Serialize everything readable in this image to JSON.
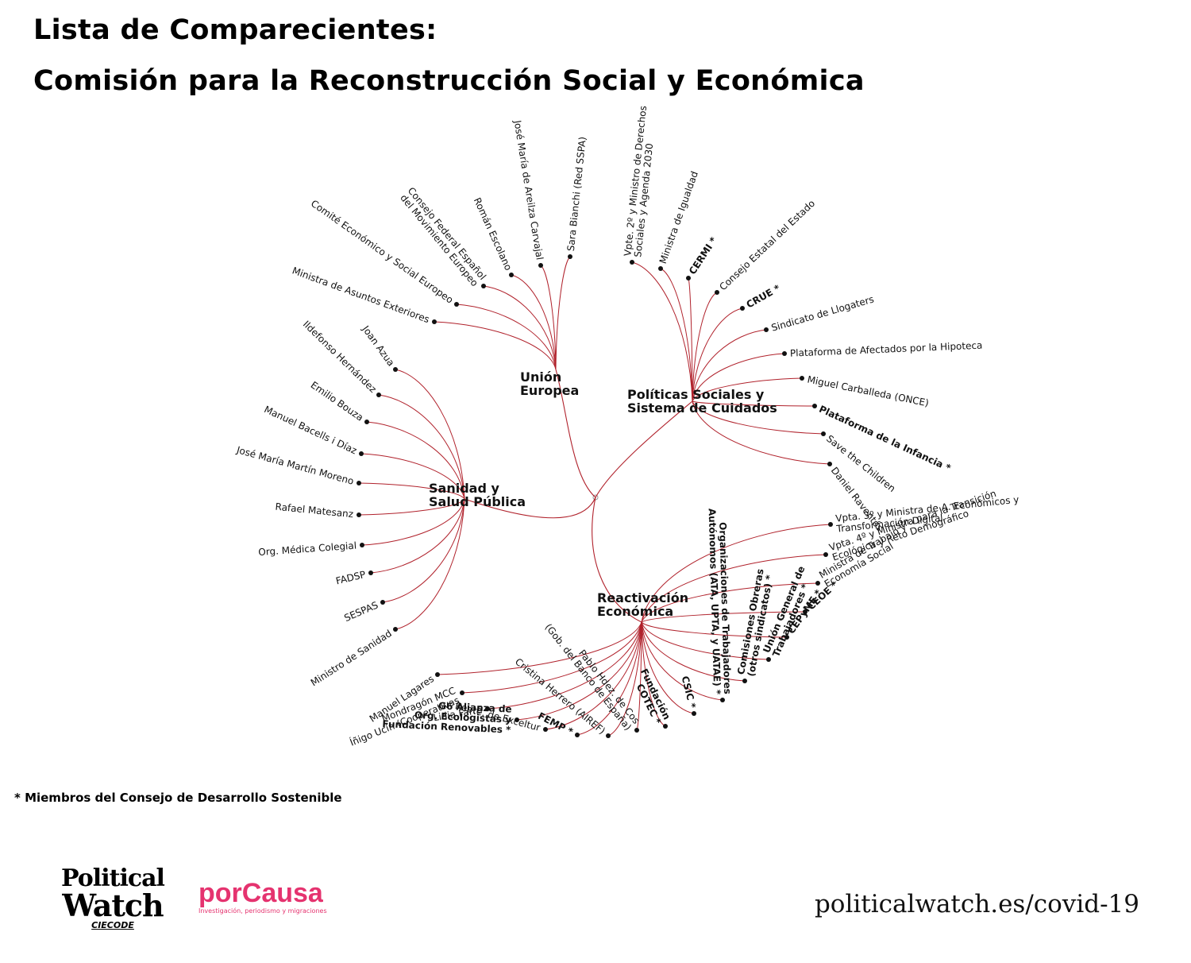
{
  "title_line1": "Lista de Comparecientes:",
  "title_line2": "Comisión para la Reconstrucción Social y Económica",
  "accent_color": "#b0212b",
  "groups": [
    {
      "id": "ue",
      "name_lines": [
        "Unión",
        "Europea"
      ],
      "members": [
        {
          "label": "Ministra de Asuntos Exteriores",
          "bold": false
        },
        {
          "label": "Comité Económico y Social Europeo",
          "bold": false
        },
        {
          "label": "Consejo Federal Español|del Movimiento Europeo",
          "bold": false
        },
        {
          "label": "Román Escolano",
          "bold": false
        },
        {
          "label": "José María de Areilza Carvajal",
          "bold": false
        },
        {
          "label": "Sara Bianchi (Red SSPA)",
          "bold": false
        }
      ]
    },
    {
      "id": "ps",
      "name_lines": [
        "Políticas Sociales y",
        "Sistema de Cuidados"
      ],
      "members": [
        {
          "label": "Vpte. 2º y Ministro de Derechos|Sociales y Agenda 2030",
          "bold": false
        },
        {
          "label": "Ministra de Igualdad",
          "bold": false
        },
        {
          "label": "CERMI *",
          "bold": true
        },
        {
          "label": "Consejo Estatal del Estado",
          "bold": false
        },
        {
          "label": "CRUE *",
          "bold": true
        },
        {
          "label": "Sindicato de Llogaters",
          "bold": false
        },
        {
          "label": "Plataforma de Afectados por la Hipoteca",
          "bold": false
        },
        {
          "label": "Miguel Carballeda (ONCE)",
          "bold": false
        },
        {
          "label": "Plataforma de la Infancia *",
          "bold": true
        },
        {
          "label": "Save the Children",
          "bold": false
        },
        {
          "label": "Daniel Raventós",
          "bold": false
        }
      ]
    },
    {
      "id": "sa",
      "name_lines": [
        "Sanidad y",
        "Salud Pública"
      ],
      "members": [
        {
          "label": "Joan Azua",
          "bold": false
        },
        {
          "label": "Ildefonso Hernández",
          "bold": false
        },
        {
          "label": "Emilio Bouza",
          "bold": false
        },
        {
          "label": "Manuel Bacells i Díaz",
          "bold": false
        },
        {
          "label": "José María Martín Moreno",
          "bold": false
        },
        {
          "label": "Rafael Matesanz",
          "bold": false
        },
        {
          "label": "Org. Médica Colegial",
          "bold": false
        },
        {
          "label": "FADSP",
          "bold": false
        },
        {
          "label": "SESPAS",
          "bold": false
        },
        {
          "label": "Ministro de Sanidad",
          "bold": false
        }
      ]
    },
    {
      "id": "re",
      "name_lines": [
        "Reactivación",
        "Económica"
      ],
      "members": [
        {
          "label": "Vpta. 3º y Ministra de A. Económicos y|Transformación Digital",
          "bold": false
        },
        {
          "label": "Vpta. 4º y Ministra para la Transición|Ecológica y Reto Demográfico",
          "bold": false
        },
        {
          "label": "Ministra de Trabajo y|Economía Social",
          "bold": false
        },
        {
          "label": "CEOE *",
          "bold": true
        },
        {
          "label": "CEPyME *",
          "bold": true
        },
        {
          "label": "Unión General de|Trabajadores *",
          "bold": true
        },
        {
          "label": "Comisiones Obreras|(otros sindicatos) *",
          "bold": true
        },
        {
          "label": "Organizaciones de Trabajadores|Autónomos (ATA, UPTA, y UATAE) *",
          "bold": true
        },
        {
          "label": "CSIC *",
          "bold": true
        },
        {
          "label": "Fundación|COTEC *",
          "bold": true
        },
        {
          "label": "Pablo Hdez. de Cos|(Gob. del Banco de España)",
          "bold": false
        },
        {
          "label": "Cristina Herrero (AIREF)",
          "bold": false
        },
        {
          "label": "FEMP *",
          "bold": true
        },
        {
          "label": "Repte. de Exceltur",
          "bold": false
        },
        {
          "label": "G6 Alianza de|Org. Ecologistas y|Fundación Renovables *",
          "bold": true
        },
        {
          "label": "Lidia Farré",
          "bold": false
        },
        {
          "label": "Mondragón MCC|Íñigo Ucín (Cooperativas",
          "bold": false
        },
        {
          "label": "Manuel Lagares",
          "bold": false
        }
      ]
    }
  ],
  "footnote": "* Miembros del Consejo de Desarrollo Sostenible",
  "logos": {
    "political_watch_line1": "Political",
    "political_watch_line2": "Watch",
    "political_watch_sub": "CIECODE",
    "porcausa_name": "porCausa",
    "porcausa_tagline": "Investigación, periodismo y migraciones"
  },
  "website": "politicalwatch.es/covid-19"
}
